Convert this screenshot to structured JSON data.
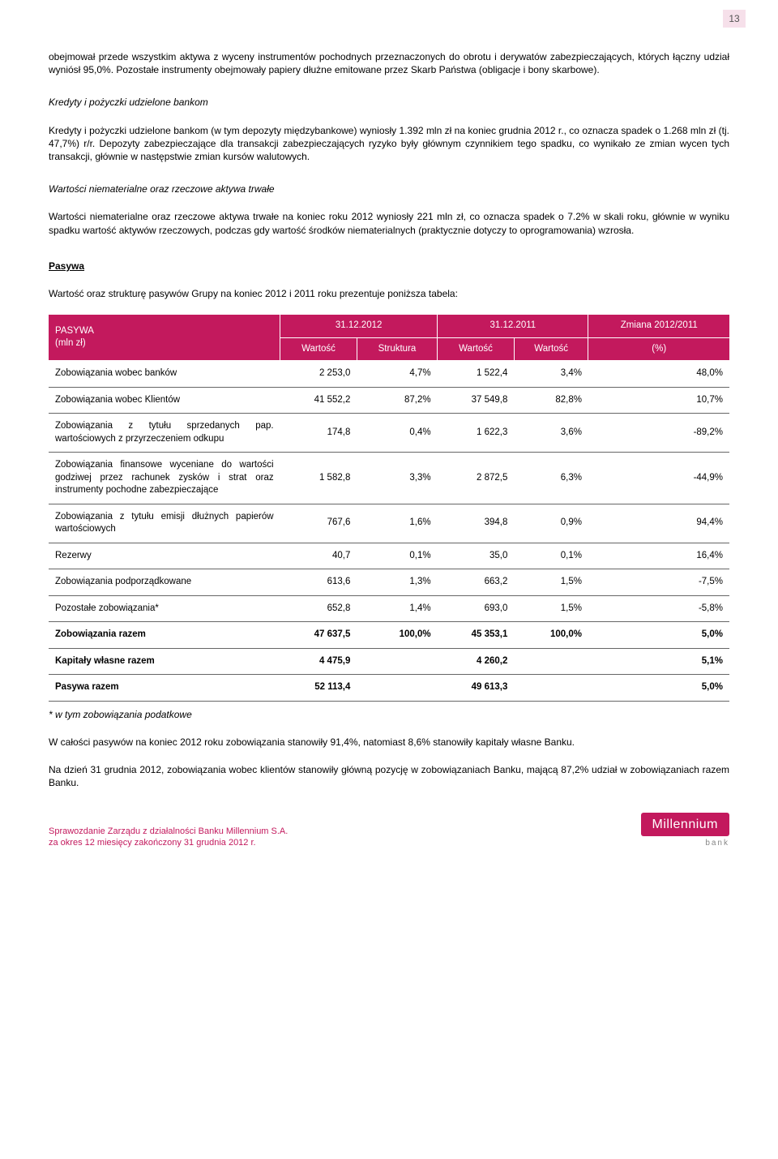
{
  "page_number": "13",
  "para1": "obejmował przede wszystkim aktywa z wyceny instrumentów pochodnych przeznaczonych do obrotu i derywatów zabezpieczających, których łączny udział wyniósł 95,0%. Pozostałe instrumenty obejmowały papiery dłużne emitowane przez Skarb Państwa (obligacje i bony skarbowe).",
  "heading1": "Kredyty i pożyczki udzielone bankom",
  "para2": "Kredyty i pożyczki udzielone bankom (w tym depozyty międzybankowe) wyniosły 1.392 mln zł na koniec grudnia 2012 r., co oznacza spadek o 1.268 mln zł (tj. 47,7%) r/r. Depozyty zabezpieczające dla transakcji zabezpieczających ryzyko były głównym czynnikiem tego spadku, co wynikało ze zmian wycen tych transakcji, głównie w następstwie zmian kursów walutowych.",
  "heading2": "Wartości niematerialne oraz rzeczowe aktywa trwałe",
  "para3": "Wartości niematerialne oraz rzeczowe aktywa trwałe na koniec roku 2012 wyniosły 221 mln zł, co oznacza spadek o 7.2% w skali roku, głównie w wyniku spadku wartość aktywów rzeczowych, podczas gdy wartość środków niematerialnych (praktycznie dotyczy to oprogramowania) wzrosła.",
  "heading3": "Pasywa",
  "para4": "Wartość oraz strukturę pasywów Grupy na koniec 2012 i 2011 roku prezentuje poniższa tabela:",
  "table": {
    "header": {
      "col_title": "PASYWA",
      "col_unit": "(mln zł)",
      "date1": "31.12.2012",
      "date2": "31.12.2011",
      "change": "Zmiana 2012/2011",
      "sub1": "Wartość",
      "sub2": "Struktura",
      "sub3": "Wartość",
      "sub4": "Wartość",
      "sub5": "(%)"
    },
    "rows": [
      {
        "label": "Zobowiązania wobec banków",
        "v1": "2 253,0",
        "v2": "4,7%",
        "v3": "1 522,4",
        "v4": "3,4%",
        "v5": "48,0%",
        "bold": false
      },
      {
        "label": "Zobowiązania wobec Klientów",
        "v1": "41 552,2",
        "v2": "87,2%",
        "v3": "37 549,8",
        "v4": "82,8%",
        "v5": "10,7%",
        "bold": false
      },
      {
        "label": "Zobowiązania z tytułu sprzedanych pap. wartościowych z przyrzeczeniem odkupu",
        "v1": "174,8",
        "v2": "0,4%",
        "v3": "1 622,3",
        "v4": "3,6%",
        "v5": "-89,2%",
        "bold": false,
        "justify": true
      },
      {
        "label": "Zobowiązania finansowe wyceniane do wartości godziwej przez rachunek zysków i strat oraz instrumenty pochodne zabezpieczające",
        "v1": "1 582,8",
        "v2": "3,3%",
        "v3": "2 872,5",
        "v4": "6,3%",
        "v5": "-44,9%",
        "bold": false,
        "justify": true
      },
      {
        "label": "Zobowiązania z tytułu emisji dłużnych papierów wartościowych",
        "v1": "767,6",
        "v2": "1,6%",
        "v3": "394,8",
        "v4": "0,9%",
        "v5": "94,4%",
        "bold": false,
        "justify": true
      },
      {
        "label": "Rezerwy",
        "v1": "40,7",
        "v2": "0,1%",
        "v3": "35,0",
        "v4": "0,1%",
        "v5": "16,4%",
        "bold": false
      },
      {
        "label": "Zobowiązania podporządkowane",
        "v1": "613,6",
        "v2": "1,3%",
        "v3": "663,2",
        "v4": "1,5%",
        "v5": "-7,5%",
        "bold": false
      },
      {
        "label": "Pozostałe zobowiązania*",
        "v1": "652,8",
        "v2": "1,4%",
        "v3": "693,0",
        "v4": "1,5%",
        "v5": "-5,8%",
        "bold": false
      },
      {
        "label": "Zobowiązania razem",
        "v1": "47 637,5",
        "v2": "100,0%",
        "v3": "45 353,1",
        "v4": "100,0%",
        "v5": "5,0%",
        "bold": true
      },
      {
        "label": "Kapitały własne razem",
        "v1": "4 475,9",
        "v2": "",
        "v3": "4 260,2",
        "v4": "",
        "v5": "5,1%",
        "bold": true
      },
      {
        "label": "Pasywa razem",
        "v1": "52 113,4",
        "v2": "",
        "v3": "49 613,3",
        "v4": "",
        "v5": "5,0%",
        "bold": true
      }
    ]
  },
  "footnote": "* w tym zobowiązania podatkowe",
  "para5": "W całości pasywów na koniec 2012 roku zobowiązania stanowiły 91,4%, natomiast 8,6% stanowiły kapitały własne Banku.",
  "para6": "Na dzień 31 grudnia 2012, zobowiązania wobec klientów stanowiły główną pozycję w zobowiązaniach Banku, mającą 87,2% udział w zobowiązaniach razem Banku.",
  "footer": {
    "line1": "Sprawozdanie Zarządu z działalności Banku Millennium S.A.",
    "line2": "za okres 12 miesięcy zakończony 31 grudnia 2012 r.",
    "logo_text": "Millennium",
    "logo_sub": "bank"
  },
  "colors": {
    "brand": "#c3195d",
    "pagebox_bg": "#f6e0ea",
    "row_border": "#666666"
  }
}
